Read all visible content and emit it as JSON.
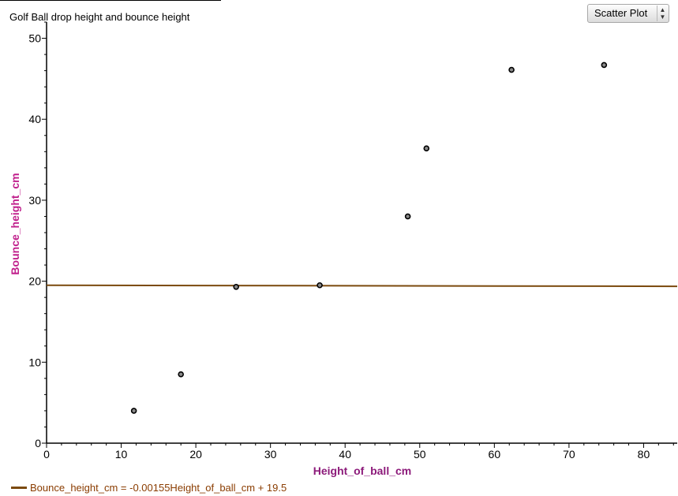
{
  "chart_data": {
    "type": "scatter",
    "title": "Golf Ball drop height and bounce height",
    "xlabel": "Height_of_ball_cm",
    "ylabel": "Bounce_height_cm",
    "xlim": [
      0,
      84.5
    ],
    "ylim": [
      0,
      52
    ],
    "x_ticks": [
      0,
      10,
      20,
      30,
      40,
      50,
      60,
      70,
      80
    ],
    "y_ticks": [
      0,
      10,
      20,
      30,
      40,
      50
    ],
    "grid": false,
    "points": [
      {
        "x": 11.7,
        "y": 4.0
      },
      {
        "x": 18.0,
        "y": 8.5
      },
      {
        "x": 25.4,
        "y": 19.3
      },
      {
        "x": 36.6,
        "y": 19.5
      },
      {
        "x": 48.4,
        "y": 28.0
      },
      {
        "x": 50.9,
        "y": 36.4
      },
      {
        "x": 62.3,
        "y": 46.1
      },
      {
        "x": 74.7,
        "y": 46.7
      }
    ],
    "fit_line": {
      "slope": -0.00155,
      "intercept": 19.5,
      "color": "#7b4a0e",
      "label": "Bounce_height_cm = -0.00155Height_of_ball_cm + 19.5"
    }
  },
  "controls": {
    "plot_type": "Scatter Plot"
  },
  "colors": {
    "ylabel": "#c0208c",
    "xlabel": "#8c1a7a",
    "legend_text": "#8a3c00"
  }
}
